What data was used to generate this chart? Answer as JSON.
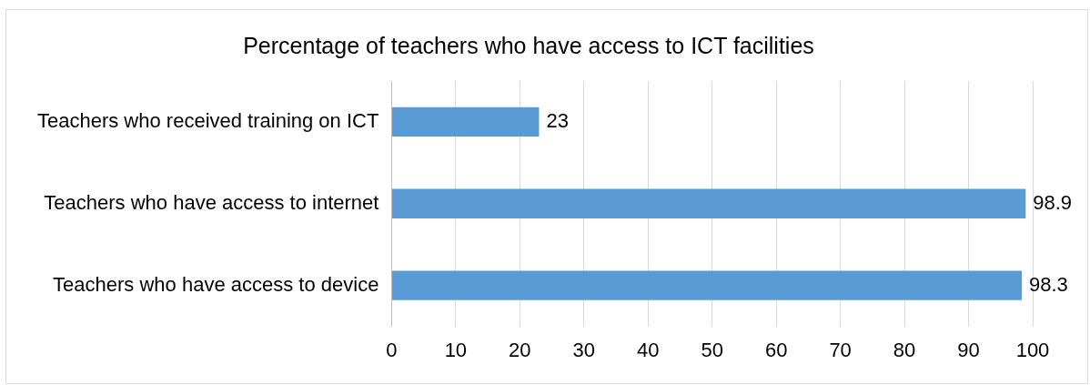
{
  "chart_data": {
    "type": "bar",
    "orientation": "horizontal",
    "title": "Percentage of teachers who have access to ICT facilities",
    "categories": [
      "Teachers who received training on ICT",
      "Teachers who have access to internet",
      "Teachers who have access to device"
    ],
    "values": [
      23,
      98.9,
      98.3
    ],
    "color": "#5b9bd5",
    "xlim": [
      0,
      100
    ],
    "xticks": [
      0,
      10,
      20,
      30,
      40,
      50,
      60,
      70,
      80,
      90,
      100
    ],
    "grid": "x",
    "legend": false,
    "data_labels": true
  }
}
